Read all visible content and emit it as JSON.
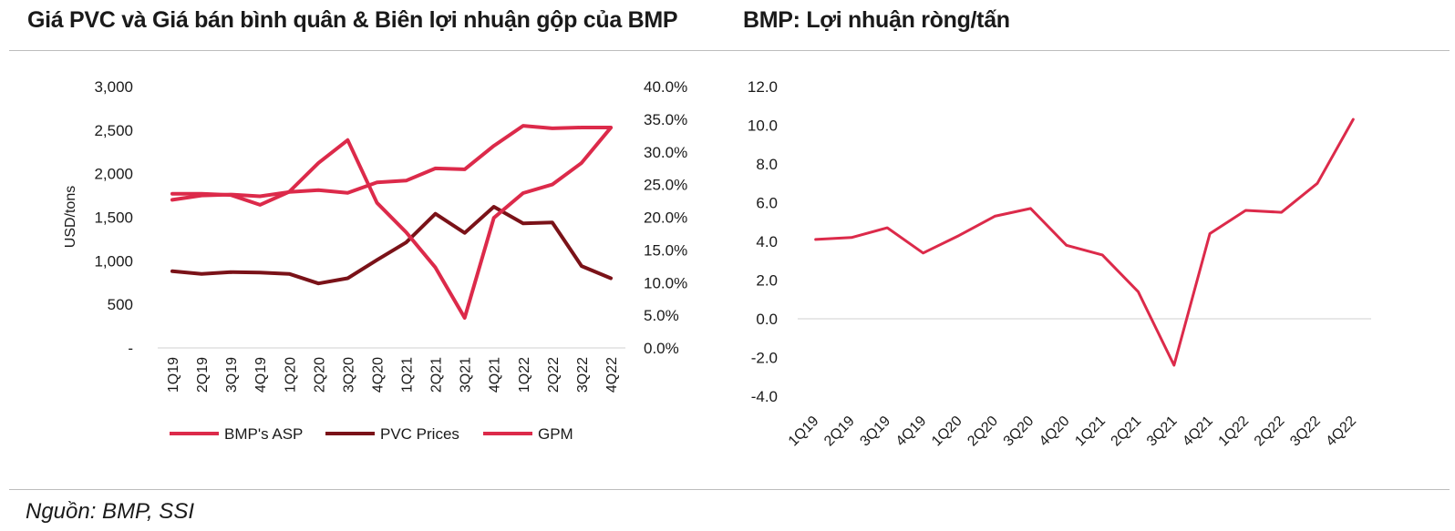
{
  "titles": {
    "left": "Giá PVC và Giá bán bình quân & Biên lợi nhuận gộp của BMP",
    "right": "BMP: Lợi nhuận ròng/tấn"
  },
  "source": "Nguồn: BMP, SSI",
  "colors": {
    "asp": "#dc2a4a",
    "pvc": "#7a1218",
    "gpm": "#dc2a4a",
    "net": "#dc2a4a",
    "axis": "#d0d0d0"
  },
  "chart_data": [
    {
      "type": "line",
      "title": "Giá PVC và Giá bán bình quân & Biên lợi nhuận gộp của BMP",
      "categories": [
        "1Q19",
        "2Q19",
        "3Q19",
        "4Q19",
        "1Q20",
        "2Q20",
        "3Q20",
        "4Q20",
        "1Q21",
        "2Q21",
        "3Q21",
        "4Q21",
        "1Q22",
        "2Q22",
        "3Q22",
        "4Q22"
      ],
      "ylabel": "USD/tons",
      "ylim": [
        0,
        3000
      ],
      "yticks": [
        0,
        500,
        1000,
        1500,
        2000,
        2500,
        3000
      ],
      "ytick_labels": [
        "-",
        "500",
        "1,000",
        "1,500",
        "2,000",
        "2,500",
        "3,000"
      ],
      "y2lim": [
        0,
        40
      ],
      "y2ticks": [
        0,
        5,
        10,
        15,
        20,
        25,
        30,
        35,
        40
      ],
      "y2tick_labels": [
        "0.0%",
        "5.0%",
        "10.0%",
        "15.0%",
        "20.0%",
        "25.0%",
        "30.0%",
        "35.0%",
        "40.0%"
      ],
      "series": [
        {
          "name": "BMP's ASP",
          "axis": "left",
          "values": [
            1700,
            1750,
            1760,
            1740,
            1790,
            1810,
            1780,
            1900,
            1920,
            2060,
            2050,
            2320,
            2550,
            2520,
            2530,
            2530
          ]
        },
        {
          "name": "PVC Prices",
          "axis": "left",
          "values": [
            880,
            850,
            870,
            865,
            850,
            740,
            800,
            1010,
            1210,
            1540,
            1320,
            1620,
            1430,
            1440,
            940,
            800
          ]
        },
        {
          "name": "GPM",
          "axis": "right",
          "values": [
            23.6,
            23.6,
            23.4,
            21.9,
            23.9,
            28.3,
            31.8,
            22.2,
            17.7,
            12.3,
            4.6,
            19.9,
            23.7,
            25.0,
            28.3,
            33.7
          ]
        }
      ],
      "legend": [
        "BMP's ASP",
        "PVC Prices",
        "GPM"
      ],
      "legend_position": "bottom"
    },
    {
      "type": "line",
      "title": "BMP: Lợi nhuận ròng/tấn",
      "categories": [
        "1Q19",
        "2Q19",
        "3Q19",
        "4Q19",
        "1Q20",
        "2Q20",
        "3Q20",
        "4Q20",
        "1Q21",
        "2Q21",
        "3Q21",
        "4Q21",
        "1Q22",
        "2Q22",
        "3Q22",
        "4Q22"
      ],
      "ylim": [
        -4,
        12
      ],
      "yticks": [
        -4,
        -2,
        0,
        2,
        4,
        6,
        8,
        10,
        12
      ],
      "ytick_labels": [
        "-4.0",
        "-2.0",
        "0.0",
        "2.0",
        "4.0",
        "6.0",
        "8.0",
        "10.0",
        "12.0"
      ],
      "series": [
        {
          "name": "Net profit per ton",
          "values": [
            4.1,
            4.2,
            4.7,
            3.4,
            4.3,
            5.3,
            5.7,
            3.8,
            3.3,
            1.4,
            -2.4,
            4.4,
            5.6,
            5.5,
            7.0,
            10.3
          ]
        }
      ]
    }
  ]
}
